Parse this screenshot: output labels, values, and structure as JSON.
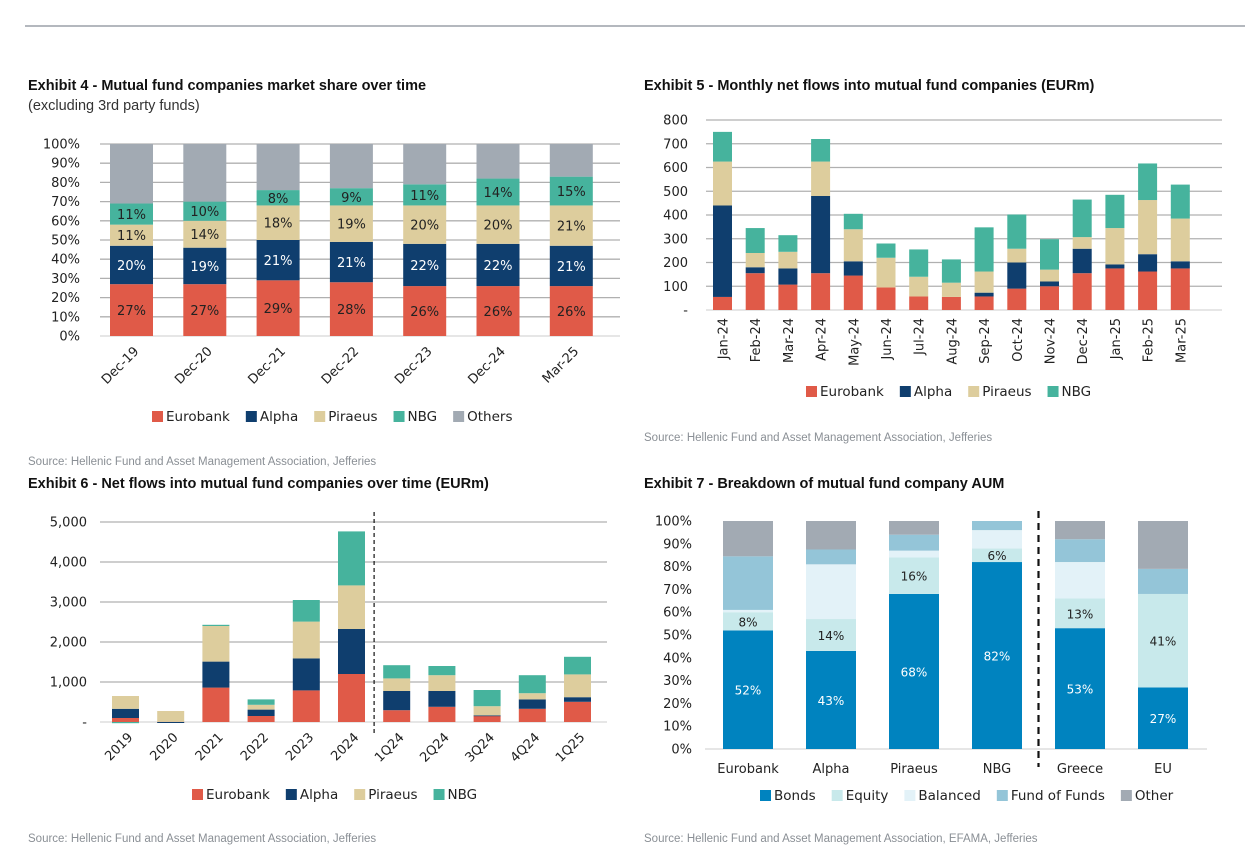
{
  "page": {
    "sources": {
      "ex4": "Source: Hellenic Fund and Asset Management Association, Jefferies",
      "ex5": "Source: Hellenic Fund and Asset Management Association, Jefferies",
      "ex6": "Source: Hellenic Fund and Asset Management Association, Jefferies",
      "ex7": "Source: Hellenic Fund and Asset Management Association, EFAMA, Jefferies"
    }
  },
  "colors": {
    "Eurobank": "#E05A48",
    "Alpha": "#0F3E6E",
    "Piraeus": "#DDCD9D",
    "NBG": "#46B39D",
    "Others": "#A2AAB3",
    "Bonds": "#0083BF",
    "Equity": "#C8E9EB",
    "Balanced": "#E3F2F8",
    "Fund of Funds": "#94C5D8",
    "Other": "#A2AAB3",
    "grid": "#b0b0b0"
  },
  "chart_data": [
    {
      "id": "ex4",
      "type": "bar",
      "stacked": true,
      "title": "Exhibit 4 - Mutual fund companies market share over time",
      "subtitle": "(excluding 3rd party funds)",
      "categories": [
        "Dec-19",
        "Dec-20",
        "Dec-21",
        "Dec-22",
        "Dec-23",
        "Dec-24",
        "Mar-25"
      ],
      "series": [
        {
          "name": "Eurobank",
          "values": [
            27,
            27,
            29,
            28,
            26,
            26,
            26
          ],
          "labels": [
            "27%",
            "27%",
            "29%",
            "28%",
            "26%",
            "26%",
            "26%"
          ]
        },
        {
          "name": "Alpha",
          "values": [
            20,
            19,
            21,
            21,
            22,
            22,
            21
          ],
          "labels": [
            "20%",
            "19%",
            "21%",
            "21%",
            "22%",
            "22%",
            "21%"
          ]
        },
        {
          "name": "Piraeus",
          "values": [
            11,
            14,
            18,
            19,
            20,
            20,
            21
          ],
          "labels": [
            "11%",
            "14%",
            "18%",
            "19%",
            "20%",
            "20%",
            "21%"
          ]
        },
        {
          "name": "NBG",
          "values": [
            11,
            10,
            8,
            9,
            11,
            14,
            15
          ],
          "labels": [
            "11%",
            "10%",
            "8%",
            "9%",
            "11%",
            "14%",
            "15%"
          ]
        },
        {
          "name": "Others",
          "values": [
            31,
            30,
            24,
            23,
            21,
            18,
            17
          ],
          "labels": null
        }
      ],
      "ylim": [
        0,
        100
      ],
      "yticks": [
        "0%",
        "10%",
        "20%",
        "30%",
        "40%",
        "50%",
        "60%",
        "70%",
        "80%",
        "90%",
        "100%"
      ],
      "xlabel": "",
      "ylabel": "",
      "grid": true,
      "legend": "bottom"
    },
    {
      "id": "ex5",
      "type": "bar",
      "stacked": true,
      "title": "Exhibit 5 - Monthly net flows into mutual fund companies (EURm)",
      "categories": [
        "Jan-24",
        "Feb-24",
        "Mar-24",
        "Apr-24",
        "May-24",
        "Jun-24",
        "Jul-24",
        "Aug-24",
        "Sep-24",
        "Oct-24",
        "Nov-24",
        "Dec-24",
        "Jan-25",
        "Feb-25",
        "Mar-25"
      ],
      "series": [
        {
          "name": "Eurobank",
          "values": [
            55,
            155,
            107,
            155,
            145,
            95,
            57,
            55,
            57,
            90,
            100,
            155,
            175,
            162,
            175
          ]
        },
        {
          "name": "Alpha",
          "values": [
            385,
            25,
            68,
            325,
            60,
            0,
            0,
            0,
            16,
            110,
            20,
            103,
            17,
            73,
            30
          ]
        },
        {
          "name": "Piraeus",
          "values": [
            185,
            60,
            70,
            145,
            135,
            125,
            83,
            60,
            89,
            58,
            50,
            49,
            153,
            228,
            180
          ]
        },
        {
          "name": "NBG",
          "values": [
            125,
            105,
            70,
            95,
            65,
            60,
            115,
            98,
            186,
            144,
            128,
            158,
            140,
            154,
            143
          ]
        }
      ],
      "ylim": [
        0,
        800
      ],
      "yticks": [
        "-",
        "100",
        "200",
        "300",
        "400",
        "500",
        "600",
        "700",
        "800"
      ],
      "xlabel": "",
      "ylabel": "",
      "grid": true,
      "legend": "bottom"
    },
    {
      "id": "ex6",
      "type": "bar",
      "stacked": true,
      "title": "Exhibit 6 - Net flows into mutual fund companies over time (EURm)",
      "categories": [
        "2019",
        "2020",
        "2021",
        "2022",
        "2023",
        "2024",
        "1Q24",
        "2Q24",
        "3Q24",
        "4Q24",
        "1Q25"
      ],
      "series": [
        {
          "name": "Eurobank",
          "values": [
            100,
            5,
            860,
            150,
            790,
            1200,
            295,
            380,
            160,
            330,
            505
          ]
        },
        {
          "name": "Alpha",
          "values": [
            230,
            -25,
            650,
            160,
            800,
            1125,
            480,
            395,
            5,
            235,
            115
          ]
        },
        {
          "name": "Piraeus",
          "values": [
            320,
            270,
            890,
            120,
            920,
            1090,
            315,
            395,
            230,
            155,
            570
          ]
        },
        {
          "name": "NBG",
          "values": [
            -30,
            0,
            30,
            135,
            540,
            1350,
            330,
            230,
            405,
            450,
            440
          ]
        }
      ],
      "divider_after": "2024",
      "ylim": [
        0,
        5000
      ],
      "yticks": [
        "-",
        "1,000",
        "2,000",
        "3,000",
        "4,000",
        "5,000"
      ],
      "xlabel": "",
      "ylabel": "",
      "grid": true,
      "legend": "bottom"
    },
    {
      "id": "ex7",
      "type": "bar",
      "stacked": true,
      "title": "Exhibit 7 - Breakdown of mutual fund company AUM",
      "categories": [
        "Eurobank",
        "Alpha",
        "Piraeus",
        "NBG",
        "Greece",
        "EU"
      ],
      "series": [
        {
          "name": "Bonds",
          "values": [
            52,
            43,
            68,
            82,
            53,
            27
          ],
          "labels": [
            "52%",
            "43%",
            "68%",
            "82%",
            "53%",
            "27%"
          ]
        },
        {
          "name": "Equity",
          "values": [
            8,
            14,
            16,
            6,
            13,
            41
          ],
          "labels": [
            "8%",
            "14%",
            "16%",
            "6%",
            "13%",
            "41%"
          ]
        },
        {
          "name": "Balanced",
          "values": [
            1,
            24,
            3,
            8,
            16,
            0
          ],
          "labels": null
        },
        {
          "name": "Fund of Funds",
          "values": [
            23.5,
            6.5,
            7,
            4,
            10,
            11
          ],
          "labels": null
        },
        {
          "name": "Other",
          "values": [
            15.5,
            12.5,
            6,
            0,
            8,
            21
          ],
          "labels": null
        }
      ],
      "divider_after": "NBG",
      "ylim": [
        0,
        100
      ],
      "yticks": [
        "0%",
        "10%",
        "20%",
        "30%",
        "40%",
        "50%",
        "60%",
        "70%",
        "80%",
        "90%",
        "100%"
      ],
      "xlabel": "",
      "ylabel": "",
      "grid": false,
      "legend": "bottom"
    }
  ]
}
